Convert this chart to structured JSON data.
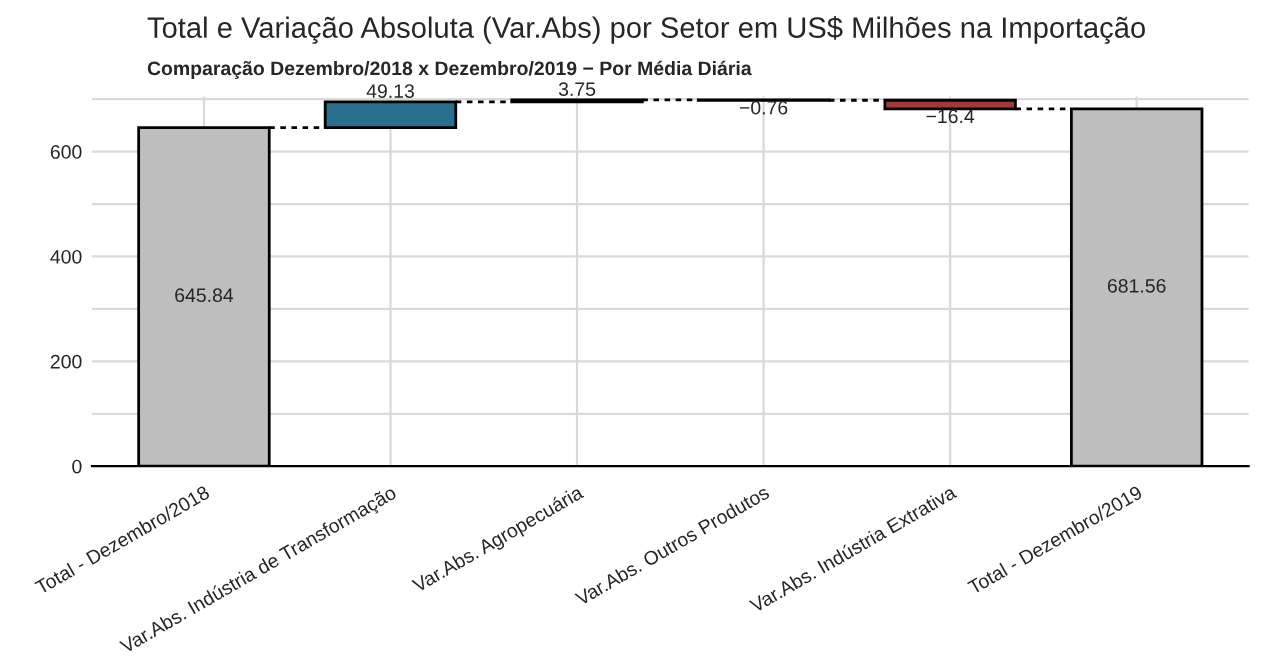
{
  "chart_data": {
    "type": "bar",
    "title": "Total e Variação Absoluta (Var.Abs) por Setor em US$ Milhões na Importação",
    "subtitle": "Comparação Dezembro/2018 x Dezembro/2019 − Por Média Diária",
    "categories": [
      "Total - Dezembro/2018",
      "Var.Abs. Indústria de Transformação",
      "Var.Abs. Agropecuária",
      "Var.Abs. Outros Produtos",
      "Var.Abs. Indústria Extrativa",
      "Total - Dezembro/2019"
    ],
    "values": [
      645.84,
      49.13,
      3.75,
      -0.76,
      -16.4,
      681.56
    ],
    "base": [
      0,
      645.84,
      694.97,
      698.72,
      697.96,
      0
    ],
    "colors": [
      "#bebebe",
      "#2b6f8f",
      "#2b6f8f",
      "#a33a3a",
      "#a33a3a",
      "#bebebe"
    ],
    "ylim": [
      0,
      705
    ],
    "yticks": [
      0,
      {
        "value": 100,
        "label": null
      },
      200,
      {
        "value": 300,
        "label": null
      },
      400,
      {
        "value": 500,
        "label": null
      },
      600,
      {
        "value": 700,
        "label": null
      }
    ],
    "grid": true,
    "data_labels": true
  }
}
